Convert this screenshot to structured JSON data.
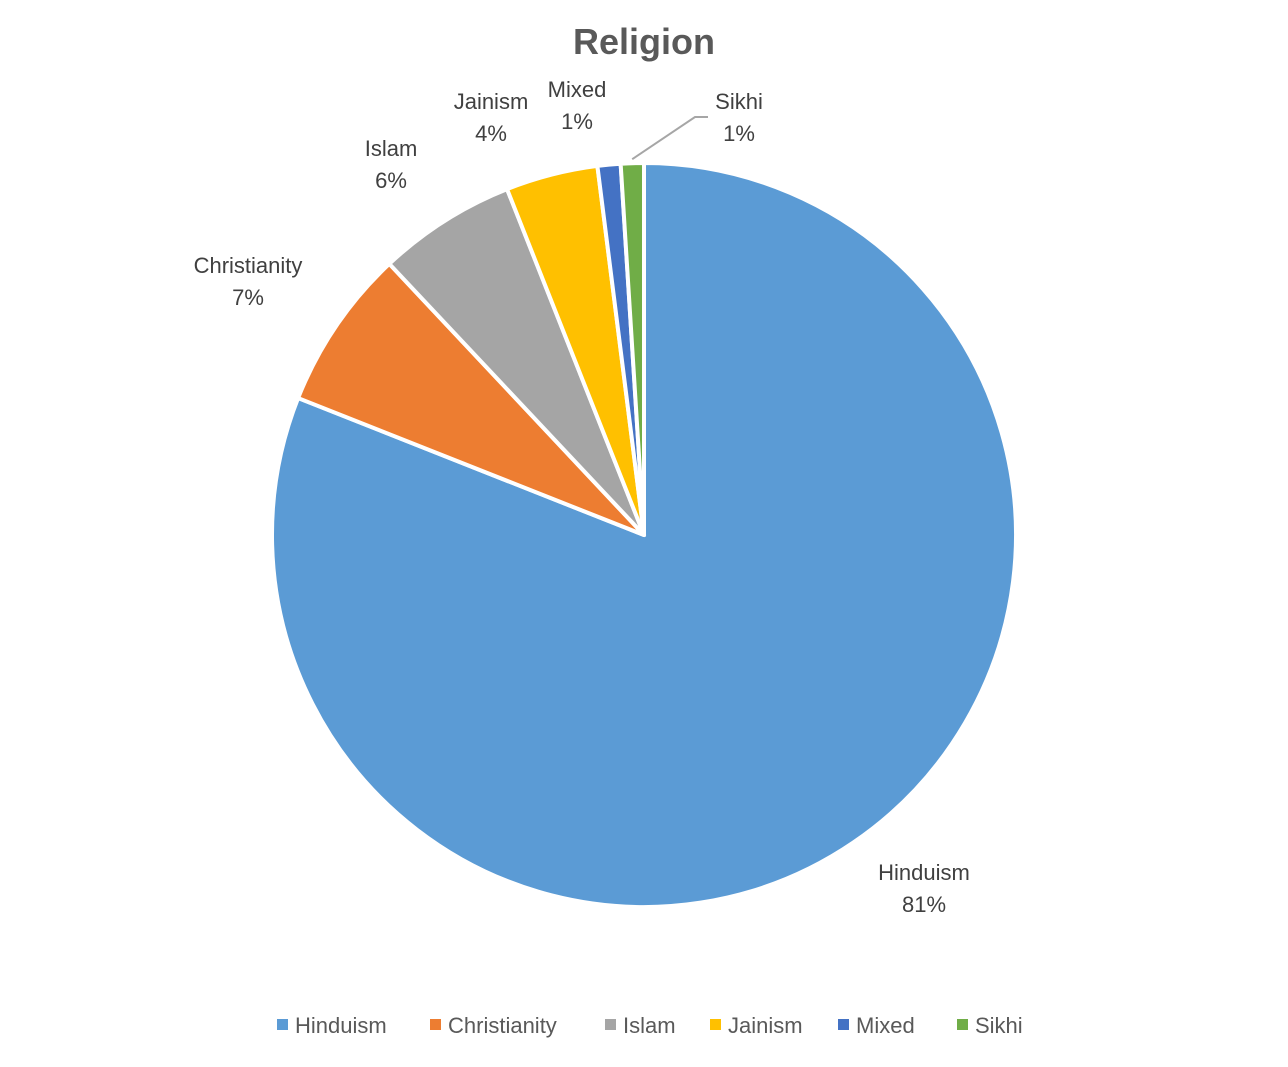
{
  "chart_data": {
    "type": "pie",
    "title": "Religion",
    "categories": [
      "Hinduism",
      "Christianity",
      "Islam",
      "Jainism",
      "Mixed",
      "Sikhi"
    ],
    "values": [
      81,
      7,
      6,
      4,
      1,
      1
    ],
    "data_labels": [
      "81%",
      "7%",
      "6%",
      "4%",
      "1%",
      "1%"
    ],
    "colors": [
      "#5B9BD5",
      "#ED7D31",
      "#A5A5A5",
      "#FFC000",
      "#4472C4",
      "#70AD47"
    ],
    "start_angle": "12 o'clock",
    "direction": "clockwise",
    "legend_position": "bottom"
  }
}
